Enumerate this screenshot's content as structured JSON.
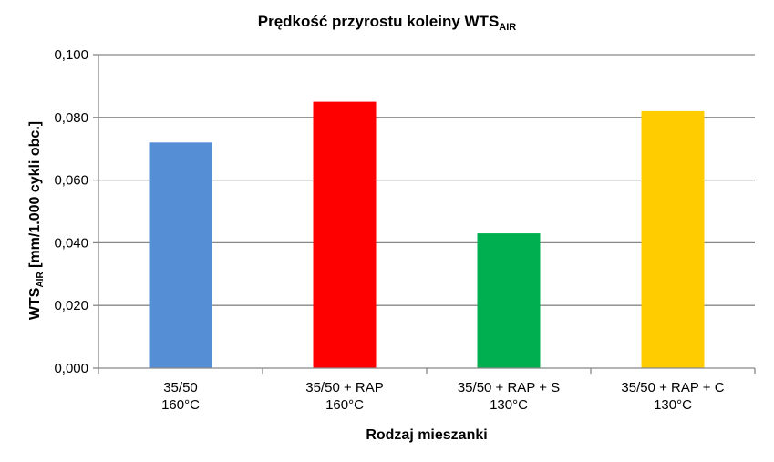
{
  "chart_data": {
    "type": "bar",
    "title": "Prędkość przyrostu koleiny WTS",
    "title_subscript": "AIR",
    "xlabel": "Rodzaj mieszanki",
    "ylabel_prefix": "WTS",
    "ylabel_subscript": "AIR",
    "ylabel_suffix": " [mm/1.000 cykli obc.]",
    "categories": [
      [
        "35/50",
        "160°C"
      ],
      [
        "35/50 + RAP",
        "160°C"
      ],
      [
        "35/50 + RAP + S",
        "130°C"
      ],
      [
        "35/50 + RAP + C",
        "130°C"
      ]
    ],
    "values": [
      0.072,
      0.085,
      0.043,
      0.082
    ],
    "colors": [
      "#558ed5",
      "#ff0000",
      "#00b050",
      "#ffcc00"
    ],
    "ylim": [
      0,
      0.1
    ],
    "yticks": [
      "0,000",
      "0,020",
      "0,040",
      "0,060",
      "0,080",
      "0,100"
    ],
    "grid": true,
    "legend": "none"
  }
}
